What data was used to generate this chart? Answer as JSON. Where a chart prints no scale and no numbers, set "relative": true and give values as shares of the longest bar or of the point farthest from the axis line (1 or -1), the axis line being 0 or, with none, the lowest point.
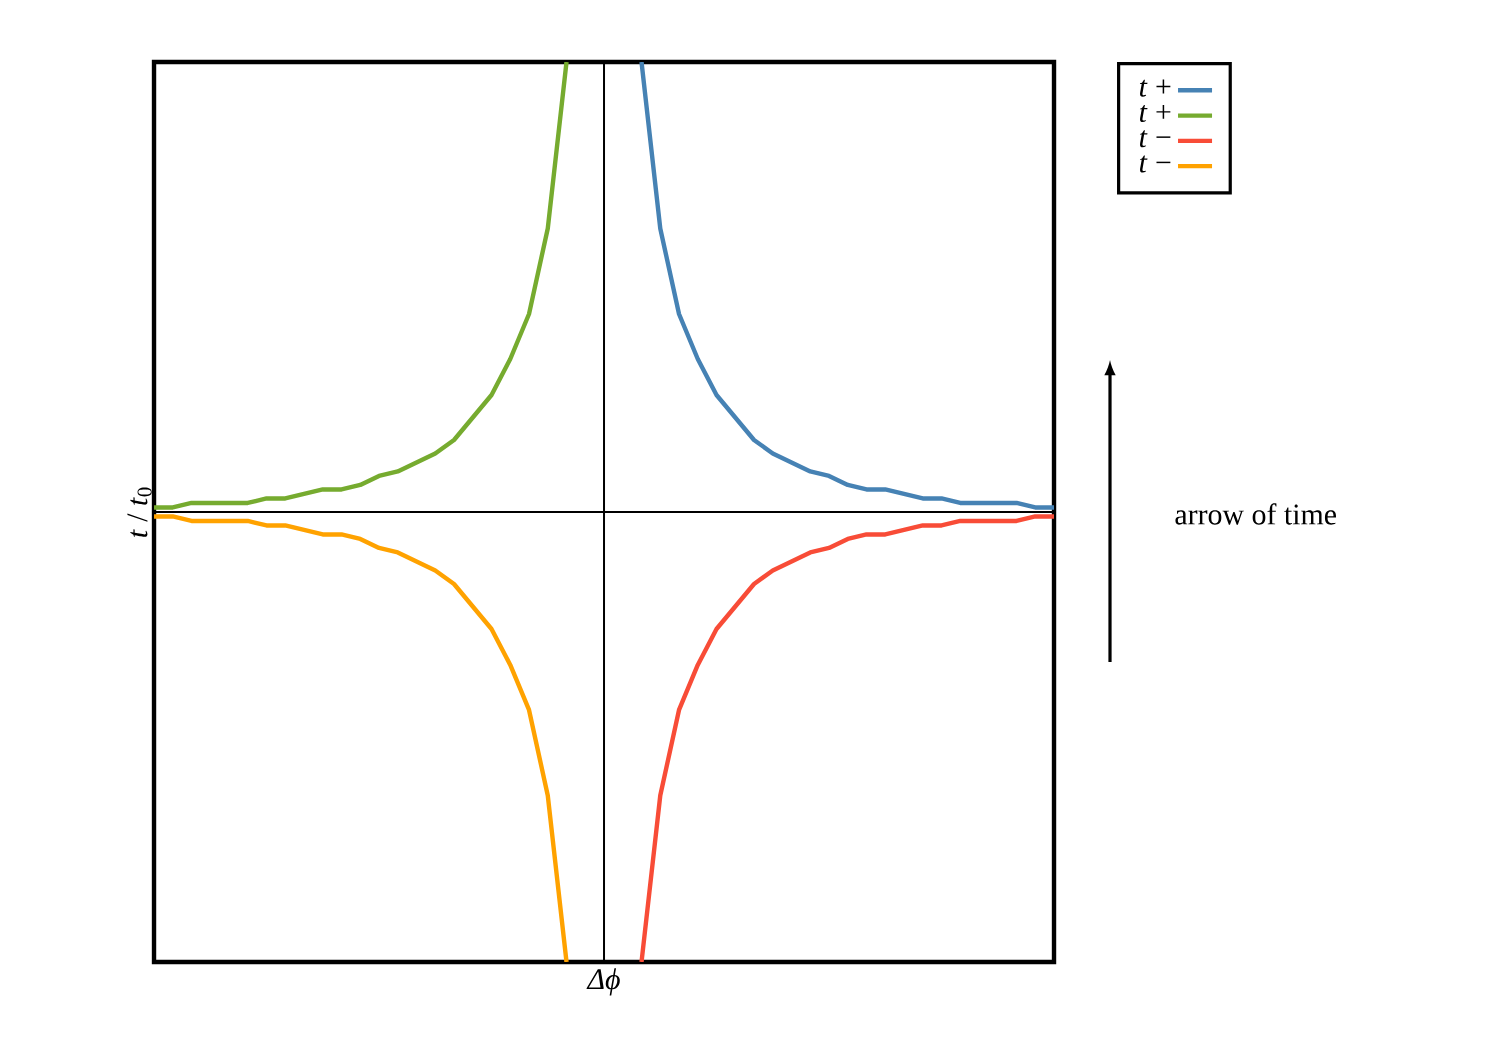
{
  "chart_data": {
    "type": "line",
    "relative": true,
    "xlabel": "*Δϕ*",
    "ylabel": "*t* / *t*$_{0}$",
    "legend": "top right",
    "line_style": "solid",
    "annotations": [
      "arrow of time"
    ],
    "categories": [
      null,
      null,
      null,
      null,
      null,
      null,
      null,
      null,
      null,
      null,
      null,
      null,
      null,
      null,
      null,
      null,
      null,
      null,
      null,
      null,
      null,
      null,
      null,
      null,
      null,
      null,
      null,
      null,
      null,
      null,
      null,
      null,
      null,
      null,
      null,
      null,
      null,
      null,
      null,
      null,
      null,
      null,
      null,
      null,
      null,
      null,
      null,
      null,
      null
    ],
    "series": [
      {
        "name": "*t* +",
        "color": "#4682b4",
        "values": [
          null,
          null,
          null,
          null,
          null,
          null,
          null,
          null,
          null,
          null,
          null,
          null,
          null,
          null,
          null,
          null,
          null,
          null,
          null,
          null,
          null,
          null,
          null,
          null,
          null,
          null,
          1.0,
          0.63,
          0.44,
          0.34,
          0.26,
          0.21,
          0.16,
          0.13,
          0.11,
          0.09,
          0.08,
          0.06,
          0.05,
          0.05,
          0.04,
          0.03,
          0.03,
          0.02,
          0.02,
          0.02,
          0.02,
          0.01,
          0.01
        ]
      },
      {
        "name": "*t* +",
        "color": "#76ab2f",
        "values": [
          0.01,
          0.01,
          0.02,
          0.02,
          0.02,
          0.02,
          0.03,
          0.03,
          0.04,
          0.05,
          0.05,
          0.06,
          0.08,
          0.09,
          0.11,
          0.13,
          0.16,
          0.21,
          0.26,
          0.34,
          0.44,
          0.63,
          1.0,
          null,
          null,
          null,
          null,
          null,
          null,
          null,
          null,
          null,
          null,
          null,
          null,
          null,
          null,
          null,
          null,
          null,
          null,
          null,
          null,
          null,
          null,
          null,
          null,
          null,
          null
        ]
      },
      {
        "name": "*t* −",
        "color": "#f84c37",
        "values": [
          null,
          null,
          null,
          null,
          null,
          null,
          null,
          null,
          null,
          null,
          null,
          null,
          null,
          null,
          null,
          null,
          null,
          null,
          null,
          null,
          null,
          null,
          null,
          null,
          null,
          null,
          -1.0,
          -0.63,
          -0.44,
          -0.34,
          -0.26,
          -0.21,
          -0.16,
          -0.13,
          -0.11,
          -0.09,
          -0.08,
          -0.06,
          -0.05,
          -0.05,
          -0.04,
          -0.03,
          -0.03,
          -0.02,
          -0.02,
          -0.02,
          -0.02,
          -0.01,
          -0.01
        ]
      },
      {
        "name": "*t* −",
        "color": "#ffa200",
        "values": [
          -0.01,
          -0.01,
          -0.02,
          -0.02,
          -0.02,
          -0.02,
          -0.03,
          -0.03,
          -0.04,
          -0.05,
          -0.05,
          -0.06,
          -0.08,
          -0.09,
          -0.11,
          -0.13,
          -0.16,
          -0.21,
          -0.26,
          -0.34,
          -0.44,
          -0.63,
          -1.0,
          null,
          null,
          null,
          null,
          null,
          null,
          null,
          null,
          null,
          null,
          null,
          null,
          null,
          null,
          null,
          null,
          null,
          null,
          null,
          null,
          null,
          null,
          null,
          null,
          null,
          null
        ]
      }
    ]
  }
}
